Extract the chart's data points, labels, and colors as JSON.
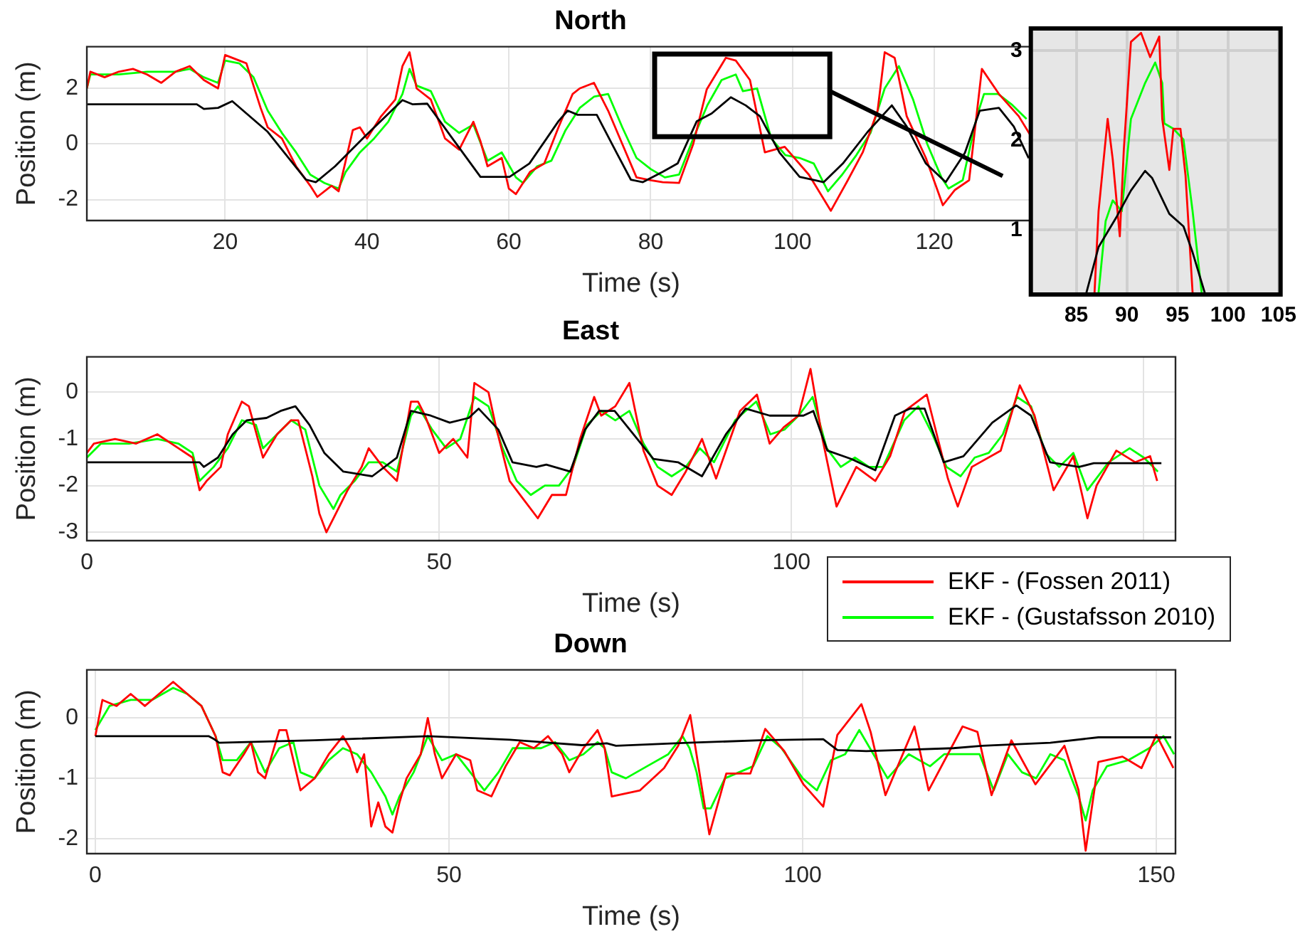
{
  "chart_data": [
    {
      "type": "line",
      "title": "North",
      "xlabel": "Time (s)",
      "ylabel": "Position (m)",
      "xlim": [
        0.5,
        154
      ],
      "xticks": [
        20,
        40,
        60,
        80,
        100,
        120
      ],
      "ylim": [
        -2.75,
        3.5
      ],
      "yticks": [
        -2,
        0,
        2
      ],
      "grid": true,
      "series": [
        {
          "color": "#000000",
          "x": [
            0.5,
            16,
            17,
            19,
            21,
            26,
            31.4,
            32.8,
            35.5,
            39.6,
            45,
            46.4,
            48.5,
            51.9,
            56,
            60.1,
            62.9,
            67,
            68.3,
            69.7,
            72.4,
            75.2,
            77.2,
            78.9,
            81.7,
            83.8,
            86.5,
            88.6,
            91.3,
            93.4,
            95.4,
            98.2,
            101,
            104.4,
            107.1,
            110.6,
            114,
            116.1,
            118.8,
            121.6,
            124.3,
            126.4,
            129.1,
            131.2,
            133.3
          ],
          "values": [
            1.43,
            1.43,
            1.26,
            1.3,
            1.54,
            0.44,
            -1.28,
            -1.37,
            -0.8,
            0.25,
            1.58,
            1.43,
            1.45,
            0.25,
            -1.18,
            -1.18,
            -0.7,
            0.82,
            1.2,
            1.05,
            1.05,
            -0.32,
            -1.28,
            -1.37,
            -1.0,
            -0.7,
            0.82,
            1.1,
            1.68,
            1.39,
            1.0,
            -0.32,
            -1.18,
            -1.37,
            -0.7,
            0.44,
            1.39,
            0.63,
            -0.7,
            -1.37,
            -0.32,
            1.2,
            1.3,
            0.63,
            -0.51
          ]
        },
        {
          "color": "#ff0000",
          "x": [
            0.5,
            1,
            3,
            5,
            7,
            9,
            11,
            13,
            15,
            17,
            19,
            20,
            22,
            23,
            25,
            26,
            28,
            30,
            32,
            33,
            35,
            36,
            37,
            38,
            39,
            40,
            42,
            44,
            45,
            46,
            47,
            49,
            51,
            53,
            55,
            56,
            57,
            59,
            60,
            61,
            63,
            65,
            67,
            69,
            70,
            72,
            74,
            76,
            78,
            80,
            81.7,
            84,
            86,
            87.9,
            90.6,
            92,
            94,
            96.1,
            98.9,
            102.3,
            105.4,
            107.8,
            109.9,
            112,
            113,
            114.4,
            116.1,
            118.8,
            121.2,
            122.9,
            124.9,
            126.7,
            129.1,
            131.9,
            133.7
          ],
          "values": [
            2.0,
            2.6,
            2.4,
            2.6,
            2.7,
            2.5,
            2.2,
            2.6,
            2.8,
            2.3,
            2.0,
            3.2,
            3.0,
            2.9,
            1.3,
            0.6,
            0.2,
            -0.8,
            -1.5,
            -1.9,
            -1.5,
            -1.7,
            -0.6,
            0.5,
            0.6,
            0.2,
            1.0,
            1.6,
            2.8,
            3.3,
            2.0,
            1.6,
            0.2,
            -0.2,
            0.8,
            0.1,
            -0.8,
            -0.5,
            -1.6,
            -1.8,
            -1.0,
            -0.7,
            0.6,
            1.8,
            2.0,
            2.2,
            1.2,
            0.0,
            -1.2,
            -1.3,
            -1.37,
            -1.4,
            0.0,
            1.96,
            3.1,
            3.0,
            2.3,
            -0.3,
            -0.1,
            -1.1,
            -2.4,
            -1.3,
            -0.3,
            1.2,
            3.3,
            3.1,
            1.0,
            -0.5,
            -2.2,
            -1.65,
            -1.3,
            2.7,
            1.8,
            1.0,
            0.25
          ]
        },
        {
          "color": "#00ff00",
          "x": [
            0.5,
            1,
            5,
            9,
            13,
            15,
            17,
            19,
            20,
            22,
            24,
            26,
            28,
            30,
            32,
            34,
            36,
            37,
            39,
            41,
            43,
            45,
            46,
            47,
            49,
            51,
            53,
            55,
            57,
            59,
            61,
            62,
            64,
            66,
            68,
            70,
            72,
            74,
            76,
            78,
            80,
            82,
            84,
            86,
            88,
            90,
            92,
            93,
            95,
            97,
            99,
            101,
            103,
            105,
            107,
            109,
            111,
            113,
            115,
            117,
            119,
            121,
            122,
            124,
            126,
            127,
            129,
            131,
            133
          ],
          "values": [
            2.0,
            2.5,
            2.5,
            2.6,
            2.6,
            2.7,
            2.4,
            2.2,
            3.0,
            2.9,
            2.4,
            1.2,
            0.4,
            -0.3,
            -1.1,
            -1.4,
            -1.6,
            -1.0,
            -0.3,
            0.2,
            0.8,
            1.8,
            2.7,
            2.1,
            1.9,
            0.8,
            0.4,
            0.7,
            -0.6,
            -0.3,
            -1.2,
            -1.4,
            -0.8,
            -0.6,
            0.5,
            1.3,
            1.7,
            1.8,
            0.6,
            -0.5,
            -0.9,
            -1.2,
            -1.1,
            0.2,
            1.4,
            2.3,
            2.5,
            1.9,
            2.0,
            0.2,
            -0.4,
            -0.5,
            -0.7,
            -1.7,
            -1.1,
            -0.4,
            0.4,
            2.0,
            2.8,
            1.6,
            0.0,
            -1.2,
            -1.6,
            -1.3,
            1.0,
            1.8,
            1.8,
            1.4,
            0.9
          ]
        }
      ]
    },
    {
      "type": "line",
      "xlim": [
        80.5,
        105.2
      ],
      "xticks": [
        85,
        90,
        95,
        100,
        105
      ],
      "ylim": [
        0.28,
        3.25
      ],
      "yticks": [
        1,
        2,
        3
      ],
      "grid": true,
      "series": [
        {
          "color": "#000000",
          "x": [
            86.0,
            87.2,
            89,
            90.4,
            91.8,
            92.5,
            94.2,
            95.6,
            96.5,
            97.7
          ],
          "values": [
            0.3,
            0.81,
            1.15,
            1.44,
            1.66,
            1.58,
            1.18,
            1.04,
            0.75,
            0.3
          ]
        },
        {
          "color": "#ff0000",
          "x": [
            86.8,
            87.2,
            88.1,
            88.6,
            89.3,
            89.7,
            90.4,
            91.4,
            92.3,
            93.2,
            93.5,
            94.2,
            94.6,
            95.3,
            95.8,
            96.5
          ],
          "values": [
            0.3,
            1.21,
            2.24,
            1.79,
            0.93,
            1.9,
            3.1,
            3.2,
            2.93,
            3.16,
            2.24,
            1.67,
            2.13,
            2.13,
            1.61,
            0.3
          ]
        },
        {
          "color": "#00ff00",
          "x": [
            87.2,
            87.9,
            88.6,
            89.5,
            90.4,
            91.8,
            92.8,
            93.5,
            93.7,
            94.6,
            95.6,
            96.5,
            97.4
          ],
          "values": [
            0.3,
            1.1,
            1.33,
            1.21,
            2.24,
            2.64,
            2.87,
            2.64,
            2.19,
            2.13,
            2.01,
            1.21,
            0.3
          ]
        }
      ]
    },
    {
      "type": "line",
      "title": "East",
      "xlabel": "Time (s)",
      "ylabel": "Position (m)",
      "xlim": [
        0,
        154.5
      ],
      "xticks": [
        0,
        50,
        100,
        {
          "value": 150,
          "label": null
        }
      ],
      "ylim": [
        -3.18,
        0.76
      ],
      "yticks": [
        -3,
        -2,
        -1,
        0
      ],
      "grid": true,
      "legend": "bottom right",
      "series": [
        {
          "color": "#000000",
          "x": [
            0,
            16,
            16.6,
            18.6,
            20.7,
            22.7,
            25.5,
            27.5,
            29.6,
            31.6,
            33.7,
            36.4,
            40.5,
            44,
            46,
            48.8,
            51.5,
            54.2,
            55.6,
            58.4,
            60.4,
            63.8,
            65.2,
            68.6,
            70.7,
            72.7,
            74.9,
            80.4,
            83.9,
            87.3,
            90.7,
            93.5,
            96.9,
            101.7,
            103.1,
            105.1,
            108.5,
            111.9,
            114.7,
            116.8,
            118.9,
            121.6,
            124.4,
            128.5,
            131.9,
            134,
            136.7,
            140.8,
            142.9,
            152.5
          ],
          "values": [
            -1.5,
            -1.5,
            -1.6,
            -1.4,
            -0.9,
            -0.6,
            -0.55,
            -0.4,
            -0.3,
            -0.7,
            -1.3,
            -1.7,
            -1.8,
            -1.4,
            -0.4,
            -0.5,
            -0.65,
            -0.55,
            -0.35,
            -0.8,
            -1.5,
            -1.6,
            -1.55,
            -1.7,
            -0.8,
            -0.4,
            -0.4,
            -1.43,
            -1.5,
            -1.8,
            -0.9,
            -0.35,
            -0.5,
            -0.5,
            -0.4,
            -1.25,
            -1.43,
            -1.67,
            -0.5,
            -0.35,
            -0.35,
            -1.5,
            -1.37,
            -0.65,
            -0.28,
            -0.5,
            -1.5,
            -1.6,
            -1.52,
            -1.52
          ]
        },
        {
          "name": "EKF - (Fossen 2011)",
          "color": "#ff0000",
          "x": [
            0,
            1,
            4,
            7,
            10,
            13,
            15,
            16,
            17,
            19,
            20,
            22,
            23,
            25,
            27,
            29,
            30,
            32,
            33,
            34,
            35,
            37,
            39,
            40,
            42,
            44,
            46,
            47,
            48,
            50,
            52,
            54,
            55,
            57,
            58,
            59,
            60,
            62,
            64,
            66,
            68,
            70,
            72,
            73,
            75,
            77,
            79,
            81,
            83,
            85,
            87.3,
            89.3,
            92.7,
            95.1,
            96.9,
            98.9,
            101,
            102.7,
            104.4,
            106.4,
            109.2,
            111.9,
            114,
            116.1,
            119.2,
            122.2,
            123.6,
            125.6,
            129.7,
            132.4,
            134.5,
            137.2,
            140,
            142,
            143.3,
            146.1,
            148.8,
            150.9,
            151.9
          ],
          "values": [
            -1.3,
            -1.1,
            -1.0,
            -1.1,
            -0.9,
            -1.2,
            -1.4,
            -2.1,
            -1.9,
            -1.6,
            -0.9,
            -0.2,
            -0.3,
            -1.4,
            -0.9,
            -0.6,
            -0.6,
            -1.8,
            -2.6,
            -3.0,
            -2.7,
            -2.1,
            -1.6,
            -1.2,
            -1.6,
            -1.9,
            -0.2,
            -0.2,
            -0.5,
            -1.3,
            -1.0,
            -1.4,
            0.2,
            0.0,
            -0.7,
            -1.3,
            -1.9,
            -2.3,
            -2.7,
            -2.2,
            -2.2,
            -1.0,
            -0.1,
            -0.5,
            -0.3,
            0.2,
            -1.25,
            -2.0,
            -2.2,
            -1.7,
            -1.0,
            -1.85,
            -0.4,
            -0.05,
            -1.1,
            -0.75,
            -0.5,
            0.5,
            -1.0,
            -2.45,
            -1.6,
            -1.9,
            -1.37,
            -0.4,
            -0.05,
            -1.85,
            -2.45,
            -1.6,
            -1.25,
            0.15,
            -0.5,
            -2.1,
            -1.37,
            -2.7,
            -2.0,
            -1.25,
            -1.5,
            -1.37,
            -1.9
          ]
        },
        {
          "name": "EKF - (Gustafsson 2010)",
          "color": "#00ff00",
          "x": [
            0,
            2,
            6,
            10,
            13,
            15,
            16,
            18,
            20,
            22,
            24,
            25,
            27,
            29,
            31,
            33,
            35,
            36,
            38,
            40,
            42,
            44,
            46,
            47,
            49,
            51,
            53,
            55,
            57,
            59,
            61,
            63,
            65,
            67,
            69,
            71,
            73,
            75,
            77,
            79,
            81,
            83,
            85,
            87,
            89,
            92,
            95,
            97,
            99,
            101,
            103,
            105,
            107,
            109,
            111,
            113,
            116,
            118,
            120,
            122,
            124,
            126,
            128,
            130,
            132,
            134,
            136,
            138,
            140,
            142,
            143,
            145,
            148,
            150,
            152
          ],
          "values": [
            -1.4,
            -1.1,
            -1.1,
            -1.0,
            -1.1,
            -1.3,
            -1.9,
            -1.6,
            -1.2,
            -0.6,
            -0.7,
            -1.2,
            -0.9,
            -0.6,
            -0.8,
            -2.0,
            -2.5,
            -2.2,
            -1.9,
            -1.5,
            -1.5,
            -1.7,
            -0.5,
            -0.3,
            -0.8,
            -1.2,
            -1.0,
            -0.1,
            -0.3,
            -1.2,
            -1.9,
            -2.2,
            -2.0,
            -2.0,
            -1.6,
            -0.7,
            -0.4,
            -0.6,
            -0.4,
            -1.1,
            -1.6,
            -1.8,
            -1.6,
            -1.2,
            -1.5,
            -0.6,
            -0.2,
            -0.9,
            -0.8,
            -0.5,
            -0.1,
            -1.2,
            -1.6,
            -1.4,
            -1.6,
            -1.6,
            -0.6,
            -0.3,
            -0.9,
            -1.6,
            -1.8,
            -1.4,
            -1.3,
            -0.9,
            -0.1,
            -0.3,
            -1.3,
            -1.6,
            -1.3,
            -2.1,
            -1.9,
            -1.5,
            -1.2,
            -1.4,
            -1.7
          ]
        }
      ]
    },
    {
      "type": "line",
      "title": "Down",
      "xlabel": "Time (s)",
      "ylabel": "Position (m)",
      "xlim": [
        -1.2,
        152.7
      ],
      "xticks": [
        0,
        50,
        100,
        150
      ],
      "ylim": [
        -2.25,
        0.8
      ],
      "yticks": [
        -2,
        -1,
        0
      ],
      "grid": true,
      "series": [
        {
          "color": "#000000",
          "x": [
            0,
            16,
            16.8,
            17.5,
            31,
            47,
            58.6,
            68.8,
            72.3,
            73.6,
            83.8,
            94,
            102.9,
            104.9,
            109,
            121.3,
            125.4,
            135,
            141.8,
            152.1
          ],
          "values": [
            -0.3,
            -0.3,
            -0.35,
            -0.41,
            -0.37,
            -0.3,
            -0.36,
            -0.45,
            -0.42,
            -0.46,
            -0.41,
            -0.37,
            -0.35,
            -0.53,
            -0.55,
            -0.5,
            -0.46,
            -0.41,
            -0.32,
            -0.32
          ]
        },
        {
          "color": "#ff0000",
          "x": [
            0,
            1,
            3,
            5,
            7,
            9,
            11,
            13,
            15,
            17,
            18,
            19,
            21,
            22,
            23,
            24,
            26,
            27,
            28,
            29,
            31,
            33,
            35,
            36,
            37,
            38,
            39,
            40,
            41,
            42,
            43,
            44,
            46,
            47,
            48,
            49,
            51,
            53,
            54,
            56,
            58,
            60,
            62,
            64,
            66,
            67,
            69,
            71,
            72,
            73,
            77,
            80.4,
            82.4,
            84.1,
            85.8,
            86.8,
            89.2,
            92.6,
            94.7,
            97.4,
            100.1,
            102.9,
            104.9,
            108.3,
            109.6,
            111.7,
            115.8,
            117.8,
            122.6,
            124.7,
            126.7,
            129.5,
            132.9,
            137,
            139,
            140,
            141.8,
            145.2,
            147.9,
            150,
            152.4
          ],
          "values": [
            -0.3,
            0.3,
            0.2,
            0.4,
            0.2,
            0.4,
            0.6,
            0.4,
            0.2,
            -0.3,
            -0.9,
            -0.95,
            -0.6,
            -0.4,
            -0.9,
            -1.0,
            -0.2,
            -0.2,
            -0.7,
            -1.2,
            -1.0,
            -0.6,
            -0.3,
            -0.5,
            -0.9,
            -0.6,
            -1.8,
            -1.4,
            -1.8,
            -1.9,
            -1.4,
            -1.0,
            -0.6,
            0.0,
            -0.6,
            -1.0,
            -0.6,
            -0.7,
            -1.2,
            -1.3,
            -0.8,
            -0.4,
            -0.5,
            -0.3,
            -0.6,
            -0.9,
            -0.5,
            -0.2,
            -0.5,
            -1.3,
            -1.2,
            -0.83,
            -0.46,
            0.05,
            -1.2,
            -1.93,
            -0.92,
            -0.92,
            -0.18,
            -0.55,
            -1.1,
            -1.47,
            -0.28,
            0.23,
            -0.23,
            -1.28,
            -0.14,
            -1.2,
            -0.14,
            -0.23,
            -1.28,
            -0.37,
            -1.1,
            -0.46,
            -1.2,
            -2.2,
            -0.73,
            -0.64,
            -0.83,
            -0.28,
            -0.83
          ]
        },
        {
          "color": "#00ff00",
          "x": [
            0,
            2,
            5,
            8,
            11,
            13,
            15,
            17,
            18,
            20,
            22,
            24,
            26,
            28,
            29,
            31,
            33,
            35,
            37,
            39,
            41,
            42,
            43,
            45,
            47,
            49,
            51,
            53,
            55,
            57,
            59,
            61,
            63,
            65,
            67,
            69,
            71,
            72,
            73,
            75,
            78,
            81,
            83,
            84,
            85,
            86,
            87,
            89,
            91,
            93,
            95,
            97,
            100,
            102,
            104,
            106,
            108,
            110,
            112,
            115,
            118,
            120,
            123,
            125,
            127,
            129,
            131,
            133,
            135,
            137,
            139,
            140,
            141,
            143,
            146,
            149,
            151,
            152.5
          ],
          "values": [
            -0.2,
            0.2,
            0.3,
            0.3,
            0.5,
            0.4,
            0.2,
            -0.3,
            -0.7,
            -0.7,
            -0.4,
            -0.9,
            -0.5,
            -0.4,
            -0.9,
            -1.0,
            -0.7,
            -0.5,
            -0.6,
            -0.9,
            -1.3,
            -1.6,
            -1.3,
            -0.9,
            -0.3,
            -0.7,
            -0.6,
            -0.9,
            -1.2,
            -0.9,
            -0.5,
            -0.5,
            -0.5,
            -0.4,
            -0.7,
            -0.6,
            -0.4,
            -0.5,
            -0.9,
            -1.0,
            -0.8,
            -0.6,
            -0.3,
            -0.5,
            -0.9,
            -1.5,
            -1.5,
            -1.0,
            -0.9,
            -0.8,
            -0.3,
            -0.5,
            -1.0,
            -1.2,
            -0.7,
            -0.6,
            -0.2,
            -0.6,
            -1.0,
            -0.6,
            -0.8,
            -0.6,
            -0.6,
            -0.6,
            -1.2,
            -0.6,
            -0.9,
            -1.0,
            -0.6,
            -0.7,
            -1.3,
            -1.7,
            -1.2,
            -0.8,
            -0.7,
            -0.5,
            -0.3,
            -0.6
          ]
        }
      ]
    }
  ]
}
